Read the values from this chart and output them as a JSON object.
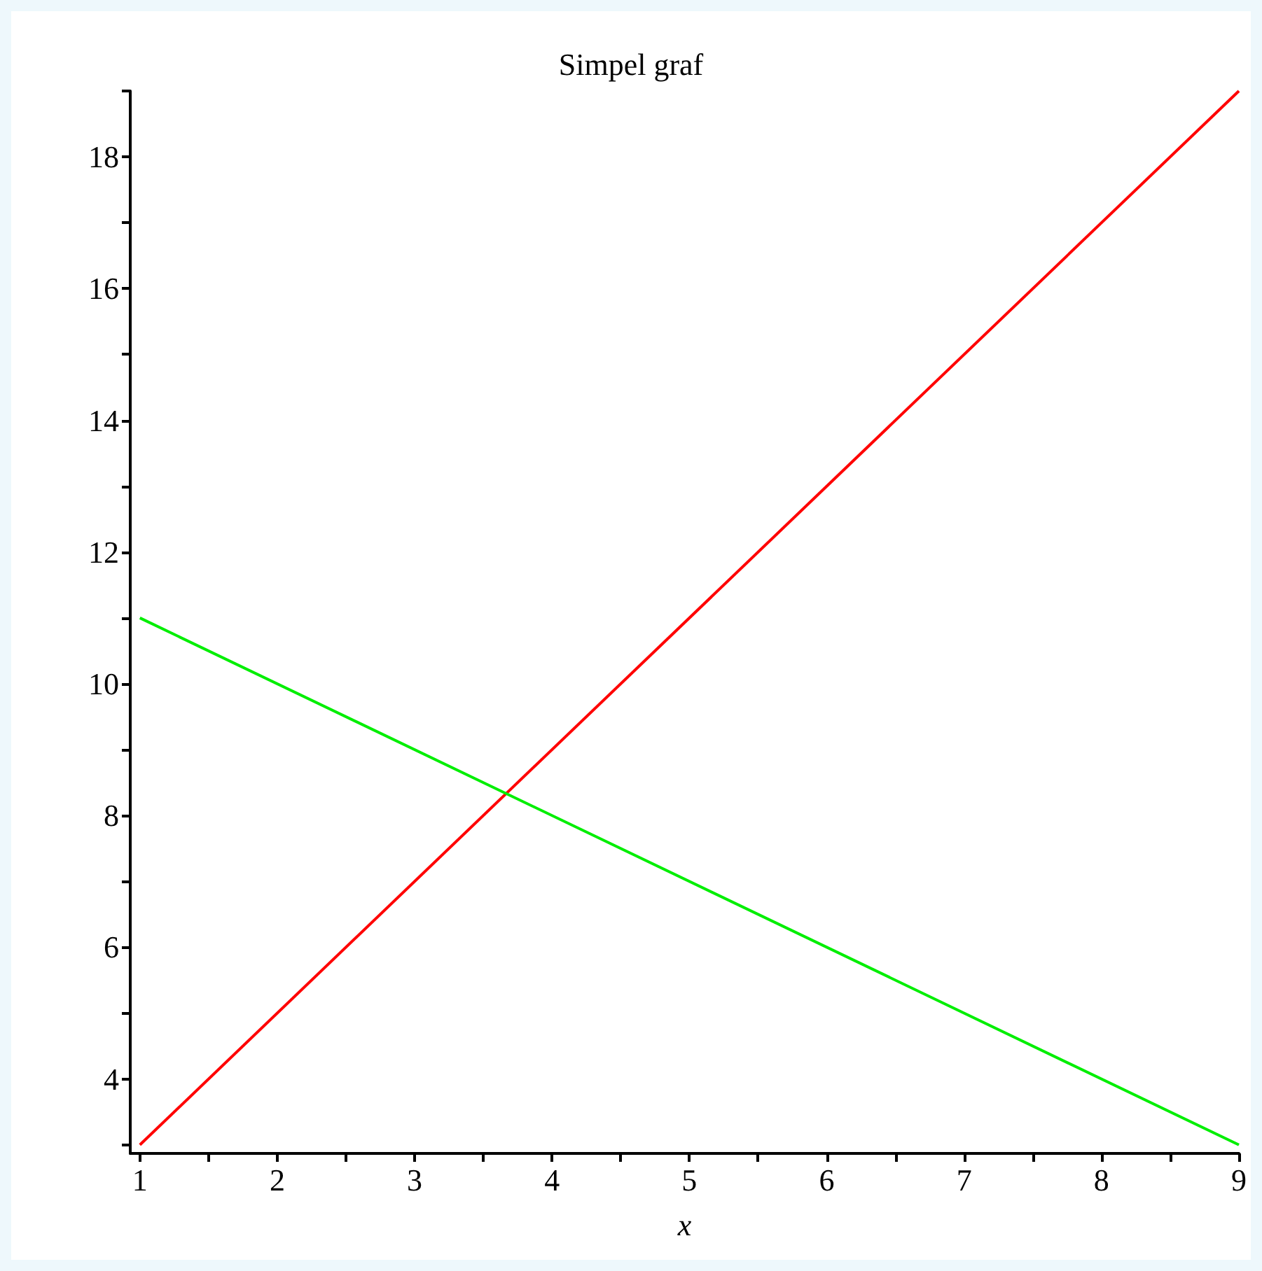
{
  "chart_data": {
    "type": "line",
    "title": "Simpel graf",
    "xlabel": "x",
    "x": [
      1,
      9
    ],
    "series": [
      {
        "color": "#ff0000",
        "values": [
          3,
          19
        ]
      },
      {
        "color": "#00ee00",
        "values": [
          11,
          3
        ]
      }
    ],
    "xlim": [
      0.93,
      9
    ],
    "xticks": [
      1,
      {
        "value": 1.5,
        "label": null
      },
      2,
      {
        "value": 2.5,
        "label": null
      },
      3,
      {
        "value": 3.5,
        "label": null
      },
      4,
      {
        "value": 4.5,
        "label": null
      },
      5,
      {
        "value": 5.5,
        "label": null
      },
      6,
      {
        "value": 6.5,
        "label": null
      },
      7,
      {
        "value": 7.5,
        "label": null
      },
      8,
      {
        "value": 8.5,
        "label": null
      },
      9
    ],
    "ylim": [
      2.87,
      19
    ],
    "yticks": [
      {
        "value": 3,
        "label": null
      },
      4,
      {
        "value": 5,
        "label": null
      },
      6,
      {
        "value": 7,
        "label": null
      },
      8,
      {
        "value": 9,
        "label": null
      },
      10,
      {
        "value": 11,
        "label": null
      },
      12,
      {
        "value": 13,
        "label": null
      },
      14,
      {
        "value": 15,
        "label": null
      },
      16,
      {
        "value": 17,
        "label": null
      },
      18,
      {
        "value": 19,
        "label": null
      }
    ],
    "grid": false,
    "marker": "none",
    "line_style": "solid"
  }
}
